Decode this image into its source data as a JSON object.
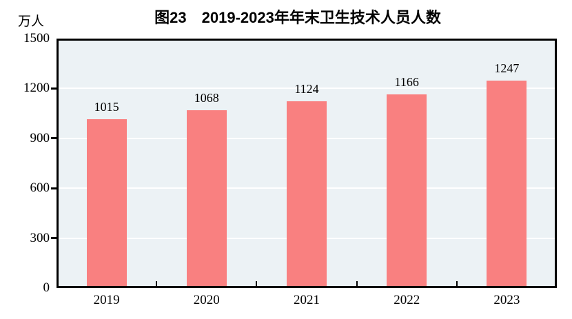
{
  "chart_data": {
    "type": "bar",
    "title": "图23　2019-2023年年末卫生技术人员人数",
    "unit_label": "万人",
    "categories": [
      "2019",
      "2020",
      "2021",
      "2022",
      "2023"
    ],
    "values": [
      1015,
      1068,
      1124,
      1166,
      1247
    ],
    "data_labels": [
      "1015",
      "1068",
      "1124",
      "1166",
      "1247"
    ],
    "ylim": [
      0,
      1500
    ],
    "yticks": [
      0,
      300,
      600,
      900,
      1200,
      1500
    ],
    "grid": true,
    "legend_position": "none",
    "colors": {
      "bar_fill": "#f98080",
      "plot_background": "#ecf2f5",
      "gridline": "#ffffff",
      "axis": "#000000",
      "text": "#000000",
      "page_background": "#ffffff"
    }
  }
}
